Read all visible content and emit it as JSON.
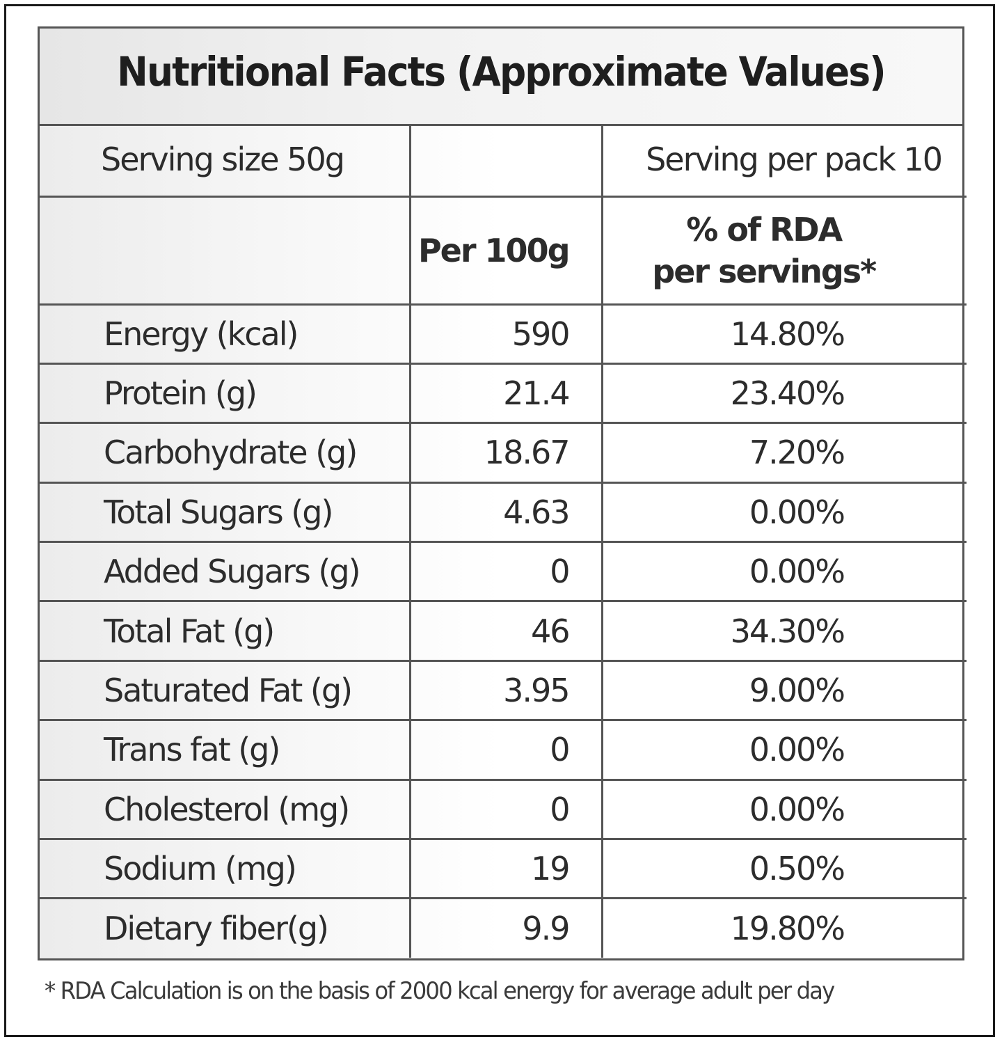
{
  "label": {
    "title": "Nutritional Facts (Approximate Values)",
    "serving_size": "Serving size 50g",
    "servings_per_pack": "Serving per pack 10",
    "col_per_100g": "Per 100g",
    "col_rda_line1": "% of RDA",
    "col_rda_line2": "per servings*",
    "rows": [
      {
        "name": "Energy (kcal)",
        "per100": "590",
        "rda": "14.80%"
      },
      {
        "name": "Protein (g)",
        "per100": "21.4",
        "rda": "23.40%"
      },
      {
        "name": "Carbohydrate (g)",
        "per100": "18.67",
        "rda": "7.20%"
      },
      {
        "name": "Total Sugars (g)",
        "per100": "4.63",
        "rda": "0.00%"
      },
      {
        "name": "Added Sugars (g)",
        "per100": "0",
        "rda": "0.00%"
      },
      {
        "name": "Total Fat (g)",
        "per100": "46",
        "rda": "34.30%"
      },
      {
        "name": "Saturated Fat (g)",
        "per100": "3.95",
        "rda": "9.00%"
      },
      {
        "name": "Trans fat (g)",
        "per100": "0",
        "rda": "0.00%"
      },
      {
        "name": "Cholesterol (mg)",
        "per100": "0",
        "rda": "0.00%"
      },
      {
        "name": "Sodium (mg)",
        "per100": "19",
        "rda": "0.50%"
      },
      {
        "name": "Dietary fiber(g)",
        "per100": "9.9",
        "rda": "19.80%"
      }
    ],
    "footnote": "* RDA Calculation is on the basis of 2000 kcal energy for average adult per day"
  }
}
